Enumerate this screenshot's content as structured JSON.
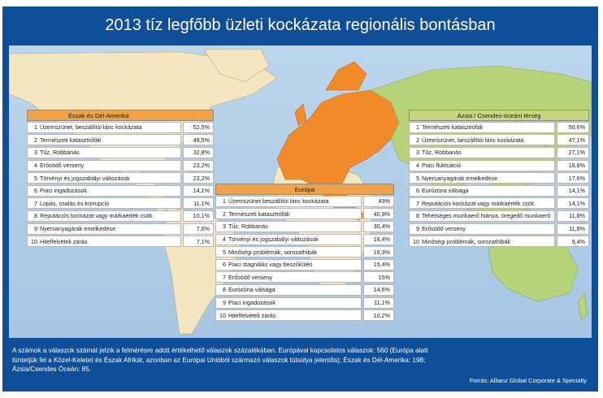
{
  "title": "2013 tíz legfőbb üzleti kockázata regionális bontásban",
  "colors": {
    "frame": "#0f4e99",
    "americas": "#f0a24a",
    "europe": "#f0a24a",
    "asia": "#c6d87e",
    "europe_map": "#f08a2a",
    "asia_map": "#b7d37a",
    "land": "#f4e6c0",
    "sea": "#a6c6e2"
  },
  "note": "A számok a válaszok számát jelzik a felmérésre adott értékelhető válaszok százalékában. Európával kapcsolatos válaszok: 560 (Európa alatt tüntetjük fel a Közel-Keletet és Észak Afrikát, azonban az Európai Unióból származó válaszok túlsúlya jelentős); Észak és Dél-Amerika: 198; Ázsia/Csendes Óceán: 85.",
  "source": "Forrás: Allianz Global Corporate & Specialty",
  "chart_data": [
    {
      "type": "table",
      "title": "Észak és Dél-Amerika",
      "rows": [
        {
          "rank": "1",
          "label": "Üzemszünet, beszállítói lánc kockázata",
          "value": "52,5%"
        },
        {
          "rank": "2",
          "label": "Természeti katasztrófák",
          "value": "49,5%"
        },
        {
          "rank": "3",
          "label": "Tűz, Robbanás",
          "value": "32,8%"
        },
        {
          "rank": "4",
          "label": "Erősödő verseny",
          "value": "23,2%"
        },
        {
          "rank": "5",
          "label": "Törvényi és jogszabályi változások",
          "value": "23,2%"
        },
        {
          "rank": "6",
          "label": "Piaci ingadozások",
          "value": "14,1%"
        },
        {
          "rank": "7",
          "label": "Lopás, csalás és korrupció",
          "value": "11,1%"
        },
        {
          "rank": "8",
          "label": "Reputációs kockázat vagy márkaérték csök.",
          "value": "10,1%"
        },
        {
          "rank": "9",
          "label": "Nyersanyagárak emelkedése",
          "value": "7,6%"
        },
        {
          "rank": "10",
          "label": "Hitelfelvételi zárás",
          "value": "7,1%"
        }
      ]
    },
    {
      "type": "table",
      "title": "Európa",
      "rows": [
        {
          "rank": "1",
          "label": "Üzemszünet beszállítói lánc kockázata",
          "value": "43%"
        },
        {
          "rank": "2",
          "label": "Természeti katasztrófák",
          "value": "40,9%"
        },
        {
          "rank": "3",
          "label": "Tűz, Robbanás",
          "value": "30,4%"
        },
        {
          "rank": "4",
          "label": "Törvényi és jogszabályi változások",
          "value": "16,4%"
        },
        {
          "rank": "5",
          "label": "Minőségi problémák, sorozathibák",
          "value": "16,3%"
        },
        {
          "rank": "6",
          "label": "Piaci stagnálás vagy beszűkülés",
          "value": "15,4%"
        },
        {
          "rank": "7",
          "label": "Erősödő verseny",
          "value": "15%"
        },
        {
          "rank": "8",
          "label": "Eurózóna válsága",
          "value": "14,6%"
        },
        {
          "rank": "9",
          "label": "Piaci ingadozások",
          "value": "11,1%"
        },
        {
          "rank": "10",
          "label": "Hitelfelvételi zárás",
          "value": "10,2%"
        }
      ]
    },
    {
      "type": "table",
      "title": "Ázsia / Csendes-óceáni térség",
      "rows": [
        {
          "rank": "1",
          "label": "Természeti katasztrófák",
          "value": "50,6%"
        },
        {
          "rank": "2",
          "label": "Üzemszünet, beszállítói lánc kockázata",
          "value": "47,1%"
        },
        {
          "rank": "3",
          "label": "Tűz, Robbanás",
          "value": "27,1%"
        },
        {
          "rank": "4",
          "label": "Piaci fluktuáció",
          "value": "18,8%"
        },
        {
          "rank": "5",
          "label": "Nyersanyagárak emelkedése",
          "value": "17,6%"
        },
        {
          "rank": "6",
          "label": "Eurózóna válsága",
          "value": "14,1%"
        },
        {
          "rank": "7",
          "label": "Reputációs kockázat vagy márkaérték csök.",
          "value": "14,1%"
        },
        {
          "rank": "8",
          "label": "Tehetséges munkaerő hiánya, öregedő munkaerő",
          "value": "11,8%"
        },
        {
          "rank": "9",
          "label": "Erősödő verseny",
          "value": "11,8%"
        },
        {
          "rank": "10",
          "label": "Minőségi problémák, sorozathibák",
          "value": "9,4%"
        }
      ]
    }
  ]
}
